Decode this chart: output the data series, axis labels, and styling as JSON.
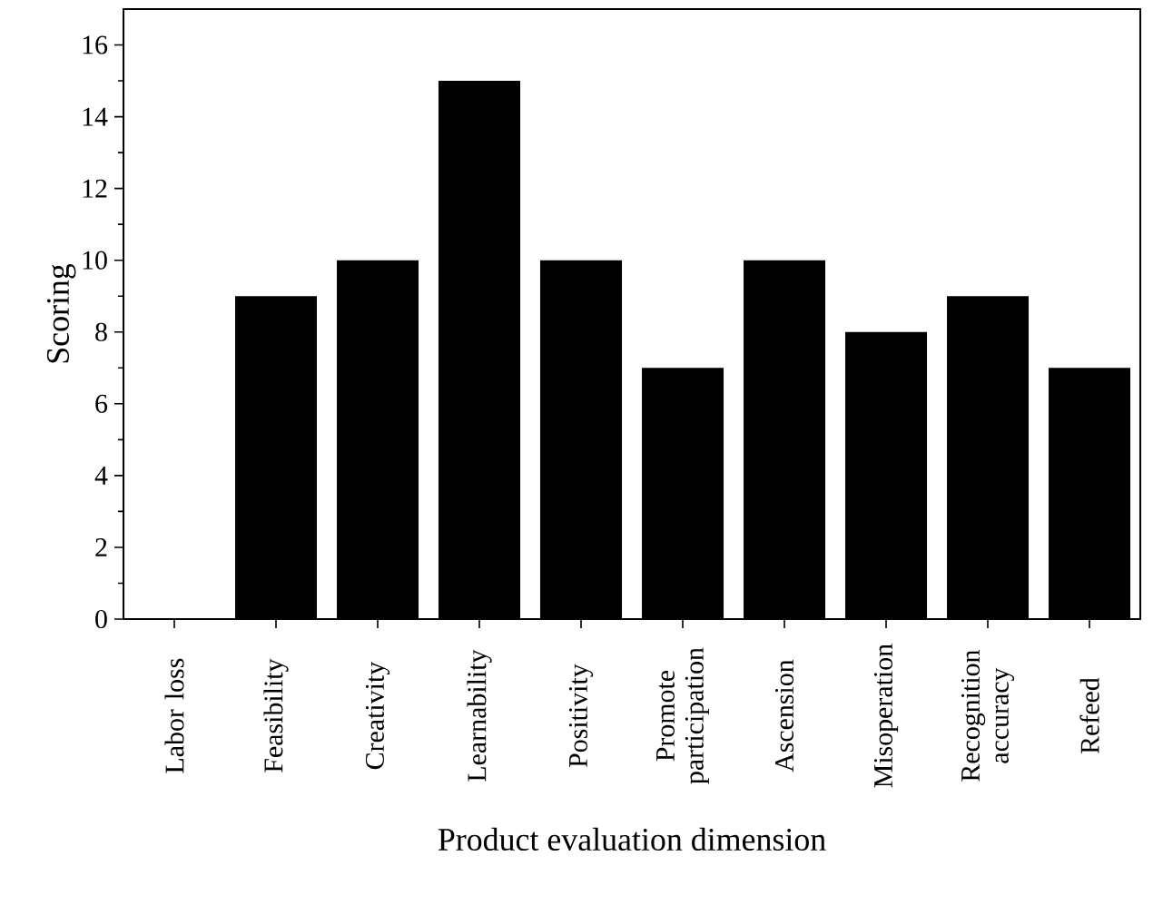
{
  "chart_data": {
    "type": "bar",
    "xlabel": "Product evaluation dimension",
    "ylabel": "Scoring",
    "categories": [
      "Labor loss",
      "Feasibility",
      "Creativity",
      "Learnability",
      "Positivity",
      "Promote participation",
      "Ascension",
      "Misoperation",
      "Recognition accuracy",
      "Refeed"
    ],
    "values": [
      0,
      9,
      10,
      15,
      10,
      7,
      10,
      8,
      9,
      7
    ],
    "color": "#000000",
    "ylim": [
      0,
      17
    ],
    "yticks": [
      0,
      2,
      4,
      6,
      8,
      10,
      12,
      14,
      16
    ],
    "grid": false
  }
}
